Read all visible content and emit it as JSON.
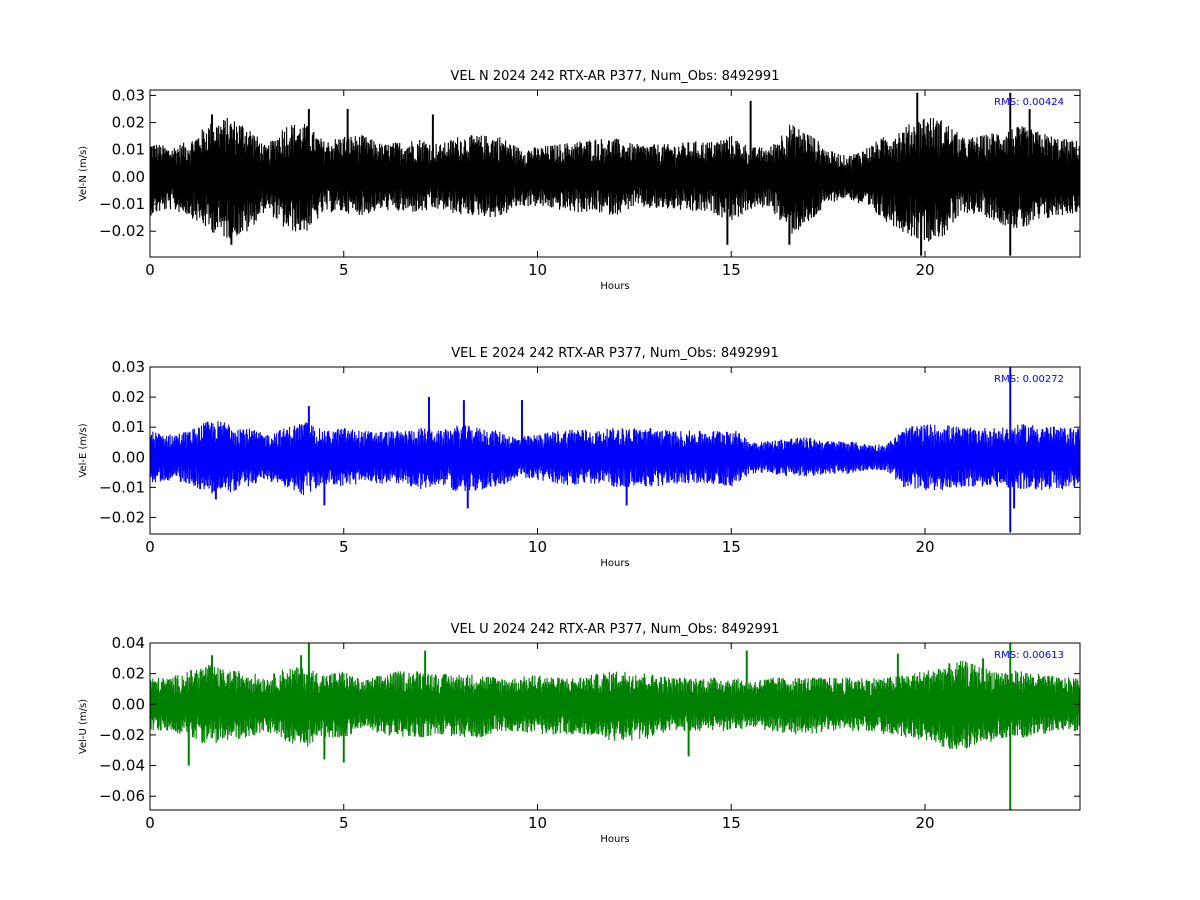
{
  "chart_data": [
    {
      "type": "line",
      "title": "VEL N 2024 242 RTX-AR  P377, Num_Obs: 8492991",
      "xlabel": "Hours",
      "ylabel": "Vel-N (m/s)",
      "xlim": [
        0,
        24
      ],
      "ylim": [
        -0.0295,
        0.032
      ],
      "xticks": [
        0,
        5,
        10,
        15,
        20
      ],
      "xtick_labels": [
        "0",
        "5",
        "10",
        "15",
        "20"
      ],
      "yticks": [
        -0.02,
        -0.01,
        0.0,
        0.01,
        0.02,
        0.03
      ],
      "ytick_labels": [
        "−0.02",
        "−0.01",
        "0.00",
        "0.01",
        "0.02",
        "0.03"
      ],
      "color": "#000000",
      "grid": false,
      "annotation": "RMS:  0.00424",
      "annotation_color": "#0000ff",
      "series": [
        {
          "envelope_hours": [
            0,
            0.5,
            1,
            1.5,
            2,
            2.5,
            3,
            3.5,
            4,
            4.5,
            5,
            5.5,
            6,
            6.5,
            7,
            7.5,
            8,
            8.5,
            9,
            9.5,
            10,
            10.5,
            11,
            11.5,
            12,
            12.5,
            13,
            13.5,
            14,
            14.5,
            15,
            15.5,
            16,
            16.5,
            17,
            17.5,
            18,
            18.5,
            19,
            19.5,
            20,
            20.5,
            21,
            21.5,
            22,
            22.5,
            23,
            23.5,
            24
          ],
          "envelope_upper": [
            0.012,
            0.01,
            0.012,
            0.018,
            0.02,
            0.018,
            0.01,
            0.018,
            0.018,
            0.012,
            0.014,
            0.014,
            0.011,
            0.012,
            0.013,
            0.011,
            0.014,
            0.014,
            0.014,
            0.01,
            0.01,
            0.011,
            0.012,
            0.013,
            0.013,
            0.011,
            0.011,
            0.011,
            0.012,
            0.012,
            0.014,
            0.01,
            0.01,
            0.018,
            0.015,
            0.009,
            0.007,
            0.01,
            0.014,
            0.017,
            0.021,
            0.019,
            0.013,
            0.014,
            0.016,
            0.017,
            0.015,
            0.013,
            0.012
          ],
          "envelope_lower": [
            -0.013,
            -0.011,
            -0.013,
            -0.018,
            -0.021,
            -0.019,
            -0.011,
            -0.018,
            -0.019,
            -0.012,
            -0.012,
            -0.013,
            -0.011,
            -0.012,
            -0.012,
            -0.011,
            -0.013,
            -0.013,
            -0.014,
            -0.01,
            -0.01,
            -0.011,
            -0.012,
            -0.012,
            -0.013,
            -0.01,
            -0.011,
            -0.011,
            -0.012,
            -0.012,
            -0.015,
            -0.011,
            -0.01,
            -0.02,
            -0.016,
            -0.009,
            -0.007,
            -0.011,
            -0.015,
            -0.019,
            -0.022,
            -0.02,
            -0.012,
            -0.013,
            -0.016,
            -0.018,
            -0.015,
            -0.013,
            -0.012
          ],
          "spikes": [
            [
              1.6,
              0.023
            ],
            [
              2.1,
              -0.025
            ],
            [
              4.1,
              0.025
            ],
            [
              5.1,
              0.025
            ],
            [
              7.3,
              0.023
            ],
            [
              14.9,
              -0.025
            ],
            [
              15.5,
              0.028
            ],
            [
              16.5,
              -0.025
            ],
            [
              19.8,
              0.031
            ],
            [
              19.9,
              -0.029
            ],
            [
              22.2,
              -0.029
            ],
            [
              22.2,
              0.031
            ],
            [
              22.7,
              0.025
            ]
          ]
        }
      ]
    },
    {
      "type": "line",
      "title": "VEL E 2024 242 RTX-AR  P377, Num_Obs: 8492991",
      "xlabel": "Hours",
      "ylabel": "Vel-E (m/s)",
      "xlim": [
        0,
        24
      ],
      "ylim": [
        -0.0255,
        0.03
      ],
      "xticks": [
        0,
        5,
        10,
        15,
        20
      ],
      "xtick_labels": [
        "0",
        "5",
        "10",
        "15",
        "20"
      ],
      "yticks": [
        -0.02,
        -0.01,
        0.0,
        0.01,
        0.02,
        0.03
      ],
      "ytick_labels": [
        "−0.02",
        "−0.01",
        "0.00",
        "0.01",
        "0.02",
        "0.03"
      ],
      "color": "#0000ff",
      "grid": false,
      "annotation": "RMS:  0.00272",
      "annotation_color": "#0000ff",
      "series": [
        {
          "envelope_hours": [
            0,
            0.5,
            1,
            1.5,
            2,
            2.5,
            3,
            3.5,
            4,
            4.5,
            5,
            5.5,
            6,
            6.5,
            7,
            7.5,
            8,
            8.5,
            9,
            9.5,
            10,
            10.5,
            11,
            11.5,
            12,
            12.5,
            13,
            13.5,
            14,
            14.5,
            15,
            15.5,
            16,
            16.5,
            17,
            17.5,
            18,
            18.5,
            19,
            19.5,
            20,
            20.5,
            21,
            21.5,
            22,
            22.5,
            23,
            23.5,
            24
          ],
          "envelope_upper": [
            0.008,
            0.007,
            0.008,
            0.011,
            0.011,
            0.009,
            0.007,
            0.009,
            0.011,
            0.008,
            0.009,
            0.008,
            0.008,
            0.008,
            0.009,
            0.008,
            0.01,
            0.009,
            0.008,
            0.006,
            0.007,
            0.008,
            0.009,
            0.008,
            0.009,
            0.009,
            0.009,
            0.008,
            0.008,
            0.008,
            0.009,
            0.005,
            0.005,
            0.006,
            0.006,
            0.005,
            0.005,
            0.004,
            0.004,
            0.009,
            0.01,
            0.01,
            0.009,
            0.009,
            0.009,
            0.01,
            0.01,
            0.009,
            0.009
          ],
          "envelope_lower": [
            -0.008,
            -0.007,
            -0.008,
            -0.011,
            -0.011,
            -0.009,
            -0.007,
            -0.009,
            -0.012,
            -0.008,
            -0.009,
            -0.008,
            -0.008,
            -0.008,
            -0.01,
            -0.008,
            -0.011,
            -0.01,
            -0.009,
            -0.006,
            -0.007,
            -0.008,
            -0.009,
            -0.008,
            -0.009,
            -0.009,
            -0.009,
            -0.008,
            -0.008,
            -0.008,
            -0.009,
            -0.005,
            -0.005,
            -0.006,
            -0.006,
            -0.005,
            -0.005,
            -0.004,
            -0.004,
            -0.01,
            -0.01,
            -0.01,
            -0.009,
            -0.009,
            -0.009,
            -0.01,
            -0.01,
            -0.01,
            -0.009
          ],
          "spikes": [
            [
              1.7,
              -0.014
            ],
            [
              4.1,
              0.017
            ],
            [
              4.5,
              -0.016
            ],
            [
              7.2,
              0.02
            ],
            [
              8.1,
              0.019
            ],
            [
              8.2,
              -0.017
            ],
            [
              9.6,
              0.019
            ],
            [
              12.3,
              -0.016
            ],
            [
              22.2,
              0.03
            ],
            [
              22.2,
              -0.025
            ],
            [
              22.3,
              -0.017
            ]
          ]
        }
      ]
    },
    {
      "type": "line",
      "title": "VEL U 2024 242 RTX-AR  P377, Num_Obs: 8492991",
      "xlabel": "Hours",
      "ylabel": "Vel-U (m/s)",
      "xlim": [
        0,
        24
      ],
      "ylim": [
        -0.069,
        0.04
      ],
      "xticks": [
        0,
        5,
        10,
        15,
        20
      ],
      "xtick_labels": [
        "0",
        "5",
        "10",
        "15",
        "20"
      ],
      "yticks": [
        -0.06,
        -0.04,
        -0.02,
        0.0,
        0.02,
        0.04
      ],
      "ytick_labels": [
        "−0.06",
        "−0.04",
        "−0.02",
        "0.00",
        "0.02",
        "0.04"
      ],
      "color": "#008000",
      "grid": false,
      "annotation": "RMS:  0.00613",
      "annotation_color": "#0000ff",
      "series": [
        {
          "envelope_hours": [
            0,
            0.5,
            1,
            1.5,
            2,
            2.5,
            3,
            3.5,
            4,
            4.5,
            5,
            5.5,
            6,
            6.5,
            7,
            7.5,
            8,
            8.5,
            9,
            9.5,
            10,
            10.5,
            11,
            11.5,
            12,
            12.5,
            13,
            13.5,
            14,
            14.5,
            15,
            15.5,
            16,
            16.5,
            17,
            17.5,
            18,
            18.5,
            19,
            19.5,
            20,
            20.5,
            21,
            21.5,
            22,
            22.5,
            23,
            23.5,
            24
          ],
          "envelope_upper": [
            0.016,
            0.016,
            0.02,
            0.024,
            0.02,
            0.02,
            0.016,
            0.022,
            0.022,
            0.018,
            0.02,
            0.014,
            0.018,
            0.02,
            0.02,
            0.018,
            0.018,
            0.018,
            0.016,
            0.016,
            0.018,
            0.016,
            0.016,
            0.018,
            0.02,
            0.02,
            0.018,
            0.016,
            0.016,
            0.016,
            0.016,
            0.014,
            0.016,
            0.016,
            0.016,
            0.016,
            0.016,
            0.016,
            0.016,
            0.018,
            0.02,
            0.024,
            0.026,
            0.022,
            0.02,
            0.02,
            0.018,
            0.016,
            0.016
          ],
          "envelope_lower": [
            -0.016,
            -0.016,
            -0.02,
            -0.024,
            -0.022,
            -0.02,
            -0.016,
            -0.022,
            -0.026,
            -0.02,
            -0.02,
            -0.014,
            -0.018,
            -0.02,
            -0.02,
            -0.018,
            -0.02,
            -0.02,
            -0.016,
            -0.016,
            -0.018,
            -0.018,
            -0.018,
            -0.02,
            -0.022,
            -0.022,
            -0.02,
            -0.016,
            -0.016,
            -0.016,
            -0.016,
            -0.014,
            -0.016,
            -0.018,
            -0.018,
            -0.016,
            -0.016,
            -0.016,
            -0.018,
            -0.02,
            -0.022,
            -0.026,
            -0.028,
            -0.024,
            -0.02,
            -0.02,
            -0.018,
            -0.016,
            -0.016
          ],
          "spikes": [
            [
              1.0,
              -0.04
            ],
            [
              1.6,
              0.032
            ],
            [
              3.9,
              0.032
            ],
            [
              4.1,
              0.04
            ],
            [
              4.5,
              -0.036
            ],
            [
              5.0,
              -0.038
            ],
            [
              7.1,
              0.035
            ],
            [
              15.4,
              0.035
            ],
            [
              13.9,
              -0.034
            ],
            [
              19.3,
              0.033
            ],
            [
              22.2,
              0.04
            ],
            [
              22.2,
              -0.069
            ],
            [
              21.5,
              0.03
            ]
          ]
        }
      ]
    }
  ]
}
